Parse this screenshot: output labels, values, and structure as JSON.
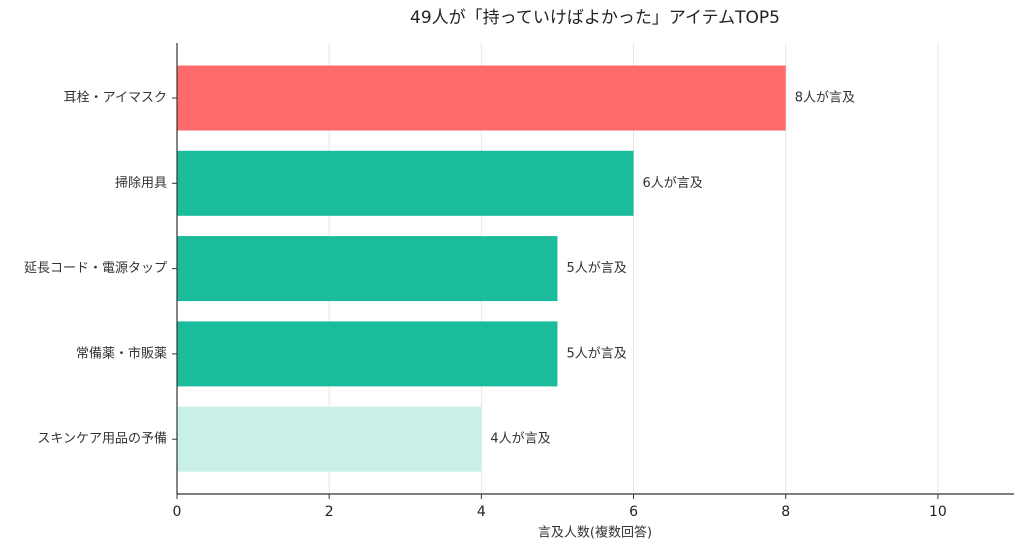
{
  "chart_data": {
    "type": "barh",
    "title": "49人が「持っていけばよかった」アイテムTOP5",
    "x_label": "言及人数(複数回答)",
    "categories": [
      "耳栓・アイマスク",
      "掃除用具",
      "延長コード・電源タップ",
      "常備薬・市販薬",
      "スキンケア用品の予備"
    ],
    "values": [
      8,
      6,
      5,
      5,
      4
    ],
    "value_labels": [
      "8人が言及",
      "6人が言及",
      "5人が言及",
      "5人が言及",
      "4人が言及"
    ],
    "colors": [
      "#ff6b6b",
      "#1abc9c",
      "#1abc9c",
      "#1abc9c",
      "#c8f0e6"
    ],
    "xlim": [
      0,
      11
    ],
    "xticks": [
      0,
      2,
      4,
      6,
      8,
      10
    ],
    "grid": true
  }
}
